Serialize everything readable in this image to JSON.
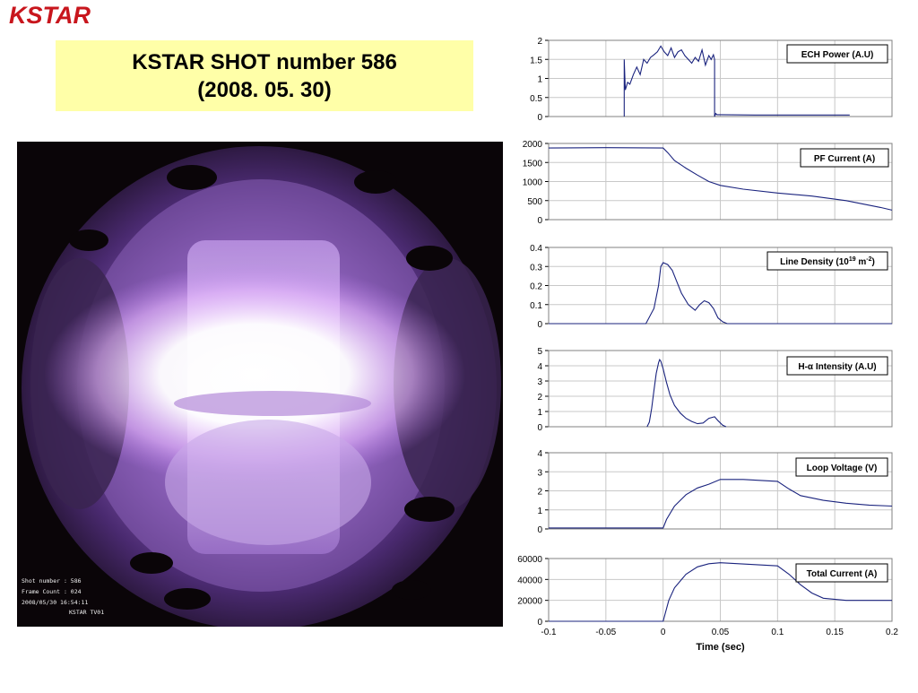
{
  "logo": {
    "text": "KSTAR"
  },
  "title": {
    "line1": "KSTAR SHOT number 586",
    "line2": "(2008. 05. 30)"
  },
  "camera_overlay": {
    "shot": "Shot number : 586",
    "frame": "Frame Count : 024",
    "datetime": "2008/05/30 16:54:11",
    "camera": "KSTAR TV01"
  },
  "colors": {
    "line": "#1a237e",
    "grid": "#c8c8c8",
    "title_bg": "#ffffa8",
    "logo": "#c8161d"
  },
  "chart_data": [
    {
      "type": "line",
      "legend": "ECH Power (A.U)",
      "ylim": [
        0,
        2
      ],
      "yticks": [
        "0",
        "0.5",
        "1",
        "1.5",
        "2"
      ],
      "xlim": [
        -0.1,
        0.2
      ],
      "series": [
        {
          "x": [
            -0.034,
            -0.034,
            -0.033,
            -0.031,
            -0.029,
            -0.026,
            -0.023,
            -0.02,
            -0.017,
            -0.014,
            -0.011,
            -0.008,
            -0.005,
            -0.002,
            0.001,
            0.004,
            0.007,
            0.01,
            0.013,
            0.016,
            0.019,
            0.022,
            0.025,
            0.028,
            0.031,
            0.034,
            0.037,
            0.04,
            0.042,
            0.044,
            0.045,
            0.045,
            0.046,
            0.047,
            0.05,
            0.08,
            0.11,
            0.14,
            0.163
          ],
          "y": [
            0,
            1.5,
            0.7,
            0.9,
            0.85,
            1.1,
            1.3,
            1.1,
            1.5,
            1.4,
            1.55,
            1.62,
            1.7,
            1.85,
            1.7,
            1.6,
            1.8,
            1.55,
            1.7,
            1.75,
            1.6,
            1.5,
            1.4,
            1.55,
            1.45,
            1.75,
            1.35,
            1.6,
            1.5,
            1.62,
            1.5,
            0.0,
            0.08,
            0.05,
            0.05,
            0.04,
            0.04,
            0.04,
            0.04
          ]
        }
      ]
    },
    {
      "type": "line",
      "legend": "PF Current (A)",
      "ylim": [
        0,
        2000
      ],
      "yticks": [
        "0",
        "500",
        "1000",
        "1500",
        "2000"
      ],
      "xlim": [
        -0.1,
        0.2
      ],
      "series": [
        {
          "x": [
            -0.1,
            -0.05,
            0.0,
            0.004,
            0.01,
            0.02,
            0.03,
            0.04,
            0.05,
            0.07,
            0.1,
            0.13,
            0.16,
            0.19,
            0.2
          ],
          "y": [
            1880,
            1890,
            1880,
            1760,
            1550,
            1350,
            1170,
            1000,
            900,
            800,
            700,
            620,
            500,
            320,
            250
          ]
        }
      ]
    },
    {
      "type": "line",
      "legend": "Line Density (10",
      "legend_sup": "19",
      "legend_mid": " m",
      "legend_sup2": "-2",
      "legend_end": ")",
      "ylim": [
        0,
        0.4
      ],
      "yticks": [
        "0",
        "0.1",
        "0.2",
        "0.3",
        "0.4"
      ],
      "xlim": [
        -0.1,
        0.2
      ],
      "series": [
        {
          "x": [
            -0.1,
            -0.015,
            -0.008,
            -0.004,
            -0.002,
            0.0,
            0.004,
            0.008,
            0.012,
            0.016,
            0.022,
            0.028,
            0.032,
            0.036,
            0.04,
            0.044,
            0.048,
            0.052,
            0.056,
            0.06,
            0.2
          ],
          "y": [
            0,
            0,
            0.08,
            0.2,
            0.3,
            0.32,
            0.31,
            0.28,
            0.22,
            0.16,
            0.1,
            0.07,
            0.1,
            0.12,
            0.11,
            0.08,
            0.03,
            0.01,
            0.0,
            0.0,
            0.0
          ]
        }
      ]
    },
    {
      "type": "line",
      "legend": "H-α Intensity (A.U)",
      "ylim": [
        0,
        5
      ],
      "yticks": [
        "0",
        "1",
        "2",
        "3",
        "4",
        "5"
      ],
      "xlim": [
        -0.1,
        0.2
      ],
      "series": [
        {
          "x": [
            -0.014,
            -0.012,
            -0.01,
            -0.008,
            -0.006,
            -0.004,
            -0.003,
            -0.002,
            0.0,
            0.003,
            0.006,
            0.01,
            0.015,
            0.02,
            0.025,
            0.03,
            0.035,
            0.04,
            0.045,
            0.048,
            0.052,
            0.055
          ],
          "y": [
            0,
            0.3,
            1.2,
            2.4,
            3.5,
            4.2,
            4.4,
            4.3,
            3.8,
            2.9,
            2.1,
            1.4,
            0.9,
            0.55,
            0.35,
            0.2,
            0.25,
            0.55,
            0.65,
            0.4,
            0.1,
            0.0
          ]
        }
      ]
    },
    {
      "type": "line",
      "legend": "Loop Voltage (V)",
      "ylim": [
        0,
        4
      ],
      "yticks": [
        "0",
        "1",
        "2",
        "3",
        "4"
      ],
      "xlim": [
        -0.1,
        0.2
      ],
      "series": [
        {
          "x": [
            -0.1,
            0.0,
            0.003,
            0.01,
            0.02,
            0.03,
            0.04,
            0.05,
            0.07,
            0.1,
            0.11,
            0.12,
            0.14,
            0.16,
            0.18,
            0.2
          ],
          "y": [
            0.05,
            0.05,
            0.5,
            1.2,
            1.8,
            2.15,
            2.35,
            2.6,
            2.6,
            2.5,
            2.1,
            1.75,
            1.5,
            1.35,
            1.25,
            1.2
          ]
        }
      ]
    },
    {
      "type": "line",
      "legend": "Total Current (A)",
      "ylim": [
        0,
        60000
      ],
      "yticks": [
        "0",
        "20000",
        "40000",
        "60000"
      ],
      "xlim": [
        -0.1,
        0.2
      ],
      "xticks": [
        "-0.1",
        "-0.05",
        "0",
        "0.05",
        "0.1",
        "0.15",
        "0.2"
      ],
      "xlabel": "Time (sec)",
      "series": [
        {
          "x": [
            -0.1,
            0.0,
            0.005,
            0.01,
            0.02,
            0.03,
            0.04,
            0.05,
            0.1,
            0.11,
            0.12,
            0.13,
            0.14,
            0.16,
            0.2
          ],
          "y": [
            0,
            0,
            20000,
            32000,
            45000,
            52000,
            55000,
            56000,
            53000,
            45000,
            35000,
            27000,
            22000,
            20000,
            20000
          ]
        }
      ]
    }
  ]
}
